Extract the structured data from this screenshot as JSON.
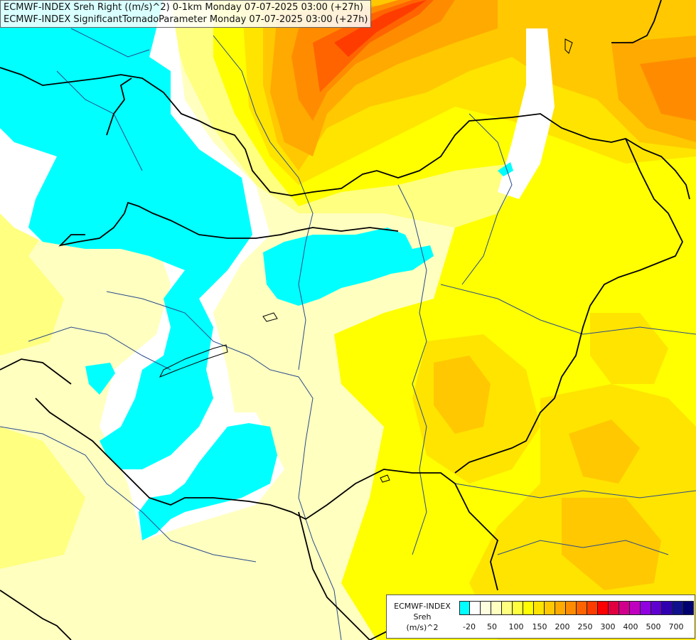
{
  "title": {
    "line1": "ECMWF-INDEX Sreh Right ((m/s)^2) 0-1km Monday 07-07-2025 03:00 (+27h)",
    "line2": "ECMWF-INDEX SignificantTornadoParameter Monday 07-07-2025 03:00 (+27h)"
  },
  "legend": {
    "line1": "ECMWF-INDEX",
    "line2": "Sreh",
    "line3": "(m/s)^2",
    "colors": [
      "#00ffff",
      "#ffffff",
      "#ffffe0",
      "#ffffc0",
      "#ffff80",
      "#ffff40",
      "#ffff00",
      "#ffe400",
      "#ffc800",
      "#ffaa00",
      "#ff8c00",
      "#ff6400",
      "#ff3c00",
      "#ff0000",
      "#e00040",
      "#d0008c",
      "#c000c0",
      "#9000e0",
      "#6000d0",
      "#3000b0",
      "#10108c",
      "#000070"
    ],
    "tick_labels": [
      "-20",
      "50",
      "100",
      "150",
      "200",
      "250",
      "300",
      "400",
      "500",
      "700"
    ]
  },
  "colors": {
    "cyan": "#00ffff",
    "white": "#ffffff",
    "pale_yellow": "#ffffc0",
    "light_yellow": "#ffff80",
    "yellow": "#ffff00",
    "gold": "#ffe400",
    "orange": "#ffc800",
    "dark_orange": "#ffaa00",
    "deep_orange": "#ff8c00",
    "red_orange": "#ff6400",
    "red": "#ff3c00",
    "country_border": "#000000",
    "river": "#2a4a8a"
  }
}
